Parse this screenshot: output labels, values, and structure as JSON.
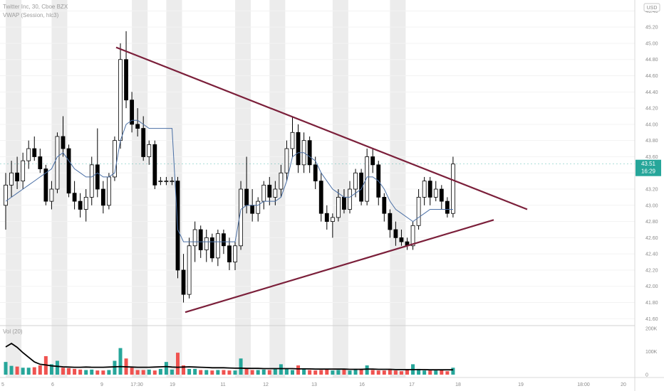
{
  "header": {
    "symbol_line": "Twitter Inc, 30, Cboe BZX",
    "indicator": "VWAP (Session, hlc3)",
    "volume_label": "Vol (20)",
    "currency": "USD",
    "last_price": "43.51",
    "countdown": "16:29"
  },
  "colors": {
    "up": "#26a69a",
    "down": "#ef5350",
    "candle_down": "#000000",
    "candle_up": "#ffffff",
    "vwap": "#4a6fa5",
    "trendline": "#7b1f3a",
    "session": "#e6e6e6",
    "price_badge": "#26a69a",
    "vol_ma": "#000000"
  },
  "chart_data": [
    {
      "type": "candlestick",
      "title": "Twitter Inc, 30, Cboe BZX",
      "y_axis": {
        "range": [
          41.55,
          45.5
        ],
        "ticks": [
          "45.40",
          "45.20",
          "45.00",
          "44.80",
          "44.60",
          "44.40",
          "44.20",
          "44.00",
          "43.80",
          "43.60",
          "43.40",
          "43.20",
          "43.00",
          "42.80",
          "42.60",
          "42.40",
          "42.20",
          "42.00",
          "41.80",
          "41.60"
        ]
      },
      "x_axis": {
        "tick_labels": [
          "5",
          "6",
          "9",
          "17:30",
          "19",
          "11",
          "12",
          "13",
          "16",
          "17",
          "18",
          "19",
          "18:00",
          "20"
        ]
      },
      "candles": [
        {
          "o": 43.0,
          "h": 43.4,
          "l": 42.7,
          "c": 43.25
        },
        {
          "o": 43.25,
          "h": 43.55,
          "l": 43.1,
          "c": 43.4
        },
        {
          "o": 43.4,
          "h": 43.6,
          "l": 43.2,
          "c": 43.3
        },
        {
          "o": 43.3,
          "h": 43.65,
          "l": 43.2,
          "c": 43.55
        },
        {
          "o": 43.55,
          "h": 43.8,
          "l": 43.45,
          "c": 43.7
        },
        {
          "o": 43.7,
          "h": 43.85,
          "l": 43.55,
          "c": 43.6
        },
        {
          "o": 43.6,
          "h": 43.7,
          "l": 43.4,
          "c": 43.45
        },
        {
          "o": 43.45,
          "h": 43.5,
          "l": 43.0,
          "c": 43.05
        },
        {
          "o": 43.05,
          "h": 43.3,
          "l": 42.95,
          "c": 43.2
        },
        {
          "o": 43.2,
          "h": 43.9,
          "l": 43.15,
          "c": 43.85
        },
        {
          "o": 43.85,
          "h": 44.1,
          "l": 43.6,
          "c": 43.7
        },
        {
          "o": 43.7,
          "h": 43.75,
          "l": 43.1,
          "c": 43.15
        },
        {
          "o": 43.15,
          "h": 43.3,
          "l": 42.95,
          "c": 43.05
        },
        {
          "o": 43.05,
          "h": 43.15,
          "l": 42.85,
          "c": 42.95
        },
        {
          "o": 42.95,
          "h": 43.2,
          "l": 42.8,
          "c": 43.1
        },
        {
          "o": 43.1,
          "h": 43.6,
          "l": 43.0,
          "c": 43.5
        },
        {
          "o": 43.5,
          "h": 43.95,
          "l": 43.1,
          "c": 43.2
        },
        {
          "o": 43.2,
          "h": 43.3,
          "l": 42.9,
          "c": 43.0
        },
        {
          "o": 43.0,
          "h": 43.4,
          "l": 42.95,
          "c": 43.35
        },
        {
          "o": 43.35,
          "h": 43.85,
          "l": 43.3,
          "c": 43.8
        },
        {
          "o": 43.8,
          "h": 45.0,
          "l": 43.7,
          "c": 44.8
        },
        {
          "o": 44.8,
          "h": 45.15,
          "l": 44.2,
          "c": 44.3
        },
        {
          "o": 44.3,
          "h": 44.4,
          "l": 43.9,
          "c": 44.0
        },
        {
          "o": 44.0,
          "h": 44.2,
          "l": 43.85,
          "c": 43.95
        },
        {
          "o": 43.95,
          "h": 44.1,
          "l": 43.55,
          "c": 43.6
        },
        {
          "o": 43.6,
          "h": 43.8,
          "l": 43.5,
          "c": 43.75
        },
        {
          "o": 43.75,
          "h": 43.8,
          "l": 43.2,
          "c": 43.25
        },
        {
          "o": 43.3,
          "h": 43.35,
          "l": 43.25,
          "c": 43.3
        },
        {
          "o": 43.3,
          "h": 43.35,
          "l": 43.25,
          "c": 43.3
        },
        {
          "o": 43.3,
          "h": 43.35,
          "l": 43.25,
          "c": 43.3
        },
        {
          "o": 43.3,
          "h": 43.35,
          "l": 42.1,
          "c": 42.2
        },
        {
          "o": 42.2,
          "h": 42.4,
          "l": 41.8,
          "c": 41.9
        },
        {
          "o": 41.9,
          "h": 42.6,
          "l": 41.85,
          "c": 42.5
        },
        {
          "o": 42.5,
          "h": 42.8,
          "l": 42.3,
          "c": 42.7
        },
        {
          "o": 42.7,
          "h": 42.75,
          "l": 42.35,
          "c": 42.45
        },
        {
          "o": 42.45,
          "h": 42.7,
          "l": 42.3,
          "c": 42.6
        },
        {
          "o": 42.6,
          "h": 42.65,
          "l": 42.3,
          "c": 42.35
        },
        {
          "o": 42.35,
          "h": 42.7,
          "l": 42.25,
          "c": 42.65
        },
        {
          "o": 42.65,
          "h": 42.7,
          "l": 42.4,
          "c": 42.5
        },
        {
          "o": 42.5,
          "h": 42.6,
          "l": 42.2,
          "c": 42.3
        },
        {
          "o": 42.3,
          "h": 42.55,
          "l": 42.2,
          "c": 42.5
        },
        {
          "o": 42.5,
          "h": 43.3,
          "l": 42.45,
          "c": 43.2
        },
        {
          "o": 43.2,
          "h": 43.6,
          "l": 42.9,
          "c": 43.0
        },
        {
          "o": 43.0,
          "h": 43.2,
          "l": 42.8,
          "c": 42.9
        },
        {
          "o": 42.9,
          "h": 43.1,
          "l": 42.8,
          "c": 43.05
        },
        {
          "o": 43.05,
          "h": 43.3,
          "l": 42.95,
          "c": 43.25
        },
        {
          "o": 43.25,
          "h": 43.35,
          "l": 43.0,
          "c": 43.1
        },
        {
          "o": 43.1,
          "h": 43.3,
          "l": 43.0,
          "c": 43.2
        },
        {
          "o": 43.2,
          "h": 43.5,
          "l": 43.1,
          "c": 43.4
        },
        {
          "o": 43.4,
          "h": 43.8,
          "l": 43.3,
          "c": 43.7
        },
        {
          "o": 43.7,
          "h": 44.1,
          "l": 43.6,
          "c": 43.9
        },
        {
          "o": 43.9,
          "h": 44.0,
          "l": 43.4,
          "c": 43.5
        },
        {
          "o": 43.5,
          "h": 43.9,
          "l": 43.4,
          "c": 43.8
        },
        {
          "o": 43.8,
          "h": 43.85,
          "l": 43.4,
          "c": 43.5
        },
        {
          "o": 43.5,
          "h": 43.6,
          "l": 43.2,
          "c": 43.3
        },
        {
          "o": 43.3,
          "h": 43.4,
          "l": 42.8,
          "c": 42.9
        },
        {
          "o": 42.9,
          "h": 43.0,
          "l": 42.7,
          "c": 42.8
        },
        {
          "o": 42.8,
          "h": 42.9,
          "l": 42.6,
          "c": 42.85
        },
        {
          "o": 42.85,
          "h": 43.2,
          "l": 42.8,
          "c": 43.1
        },
        {
          "o": 43.1,
          "h": 43.2,
          "l": 42.9,
          "c": 42.95
        },
        {
          "o": 42.95,
          "h": 43.3,
          "l": 42.9,
          "c": 43.2
        },
        {
          "o": 43.2,
          "h": 43.45,
          "l": 43.1,
          "c": 43.4
        },
        {
          "o": 43.4,
          "h": 43.45,
          "l": 43.0,
          "c": 43.05
        },
        {
          "o": 43.05,
          "h": 43.7,
          "l": 43.0,
          "c": 43.6
        },
        {
          "o": 43.6,
          "h": 43.7,
          "l": 43.4,
          "c": 43.5
        },
        {
          "o": 43.5,
          "h": 43.55,
          "l": 43.0,
          "c": 43.1
        },
        {
          "o": 43.1,
          "h": 43.15,
          "l": 42.8,
          "c": 42.9
        },
        {
          "o": 42.9,
          "h": 42.95,
          "l": 42.6,
          "c": 42.7
        },
        {
          "o": 42.7,
          "h": 42.8,
          "l": 42.5,
          "c": 42.6
        },
        {
          "o": 42.6,
          "h": 42.7,
          "l": 42.5,
          "c": 42.55
        },
        {
          "o": 42.55,
          "h": 42.6,
          "l": 42.45,
          "c": 42.5
        },
        {
          "o": 42.5,
          "h": 42.8,
          "l": 42.45,
          "c": 42.75
        },
        {
          "o": 42.75,
          "h": 43.2,
          "l": 42.7,
          "c": 43.1
        },
        {
          "o": 43.1,
          "h": 43.35,
          "l": 43.0,
          "c": 43.3
        },
        {
          "o": 43.3,
          "h": 43.35,
          "l": 43.0,
          "c": 43.1
        },
        {
          "o": 43.1,
          "h": 43.3,
          "l": 43.05,
          "c": 43.2
        },
        {
          "o": 43.2,
          "h": 43.25,
          "l": 42.95,
          "c": 43.05
        },
        {
          "o": 43.05,
          "h": 43.1,
          "l": 42.85,
          "c": 42.9
        },
        {
          "o": 42.9,
          "h": 43.6,
          "l": 42.85,
          "c": 43.51
        }
      ],
      "vwap": [
        43.05,
        43.1,
        43.15,
        43.2,
        43.25,
        43.3,
        43.35,
        43.4,
        43.45,
        43.6,
        43.65,
        43.55,
        43.45,
        43.4,
        43.35,
        43.35,
        43.4,
        43.35,
        43.35,
        43.4,
        43.8,
        44.0,
        44.05,
        44.05,
        44.0,
        43.95,
        43.95,
        43.95,
        43.95,
        43.95,
        42.7,
        42.55,
        42.55,
        42.55,
        42.55,
        42.55,
        42.55,
        42.55,
        42.55,
        42.55,
        42.55,
        42.95,
        43.0,
        43.0,
        43.0,
        43.05,
        43.05,
        43.05,
        43.1,
        43.3,
        43.6,
        43.65,
        43.65,
        43.6,
        43.55,
        43.4,
        43.3,
        43.2,
        43.15,
        43.1,
        43.1,
        43.15,
        43.2,
        43.35,
        43.35,
        43.3,
        43.2,
        43.05,
        42.95,
        42.9,
        42.85,
        42.8,
        42.85,
        42.9,
        42.95,
        42.95,
        42.95,
        42.95,
        42.95
      ],
      "trendlines": [
        {
          "x1": 163,
          "y1": 44.95,
          "x2": 740,
          "y2": 42.95
        },
        {
          "x1": 260,
          "y1": 41.68,
          "x2": 693,
          "y2": 42.82
        }
      ],
      "sessions": [
        1,
        9,
        23,
        29,
        41,
        47,
        58,
        68
      ]
    },
    {
      "type": "bar",
      "title": "Vol (20)",
      "y_axis": {
        "range": [
          0,
          200000
        ],
        "ticks": [
          "200K",
          "100K",
          "0"
        ]
      },
      "volumes": [
        55,
        38,
        35,
        30,
        30,
        32,
        40,
        80,
        45,
        60,
        30,
        28,
        25,
        22,
        20,
        22,
        18,
        18,
        20,
        60,
        115,
        70,
        30,
        20,
        20,
        22,
        18,
        25,
        55,
        22,
        95,
        40,
        25,
        25,
        20,
        20,
        18,
        20,
        20,
        18,
        18,
        70,
        25,
        20,
        20,
        22,
        20,
        25,
        45,
        25,
        20,
        40,
        28,
        20,
        18,
        20,
        22,
        18,
        20,
        22,
        18,
        25,
        25,
        40,
        20,
        18,
        18,
        20,
        18,
        15,
        20,
        45,
        25,
        18,
        18,
        18,
        20,
        15,
        30
      ],
      "ma": [
        120,
        135,
        118,
        95,
        75,
        55,
        45,
        42,
        38,
        36,
        34,
        33,
        32,
        32,
        33,
        32,
        32,
        32,
        33,
        34,
        35,
        34,
        33,
        32,
        32,
        32,
        33,
        34,
        35,
        33,
        32,
        33,
        34,
        33,
        32,
        31,
        30,
        30,
        30,
        29,
        28,
        28,
        27,
        27,
        27,
        26,
        26,
        26,
        26,
        26,
        26,
        25,
        25,
        25,
        24,
        24,
        24,
        24,
        24,
        24,
        23,
        23,
        23,
        24,
        24,
        23,
        23,
        23,
        22,
        22,
        22,
        22,
        22,
        22,
        21,
        21,
        21,
        21,
        21
      ]
    }
  ]
}
